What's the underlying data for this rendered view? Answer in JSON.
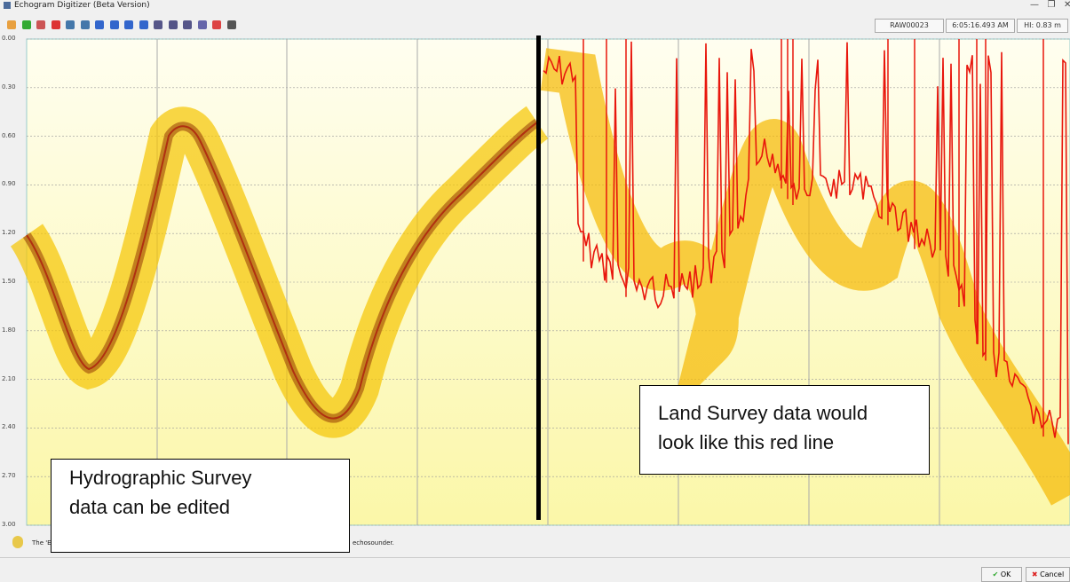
{
  "window": {
    "title": "Echogram Digitizer (Beta Version)"
  },
  "status_fields": [
    "RAW00023",
    "6:05:16.493 AM",
    "HI: 0.83 m"
  ],
  "depth_axis": {
    "ticks": [
      "0.00",
      "0.30",
      "0.60",
      "0.90",
      "1.20",
      "1.50",
      "1.80",
      "2.10",
      "2.40",
      "2.70",
      "3.00"
    ]
  },
  "annotations": [
    {
      "lines": [
        "Hydrographic Survey",
        "data can be edited"
      ]
    },
    {
      "lines": [
        "Land Survey data would",
        "look like this red line"
      ]
    }
  ],
  "status_bar": {
    "message_start": "The 'E",
    "message_end": "echosounder."
  },
  "buttons": {
    "ok": "OK",
    "cancel": "Cancel"
  }
}
